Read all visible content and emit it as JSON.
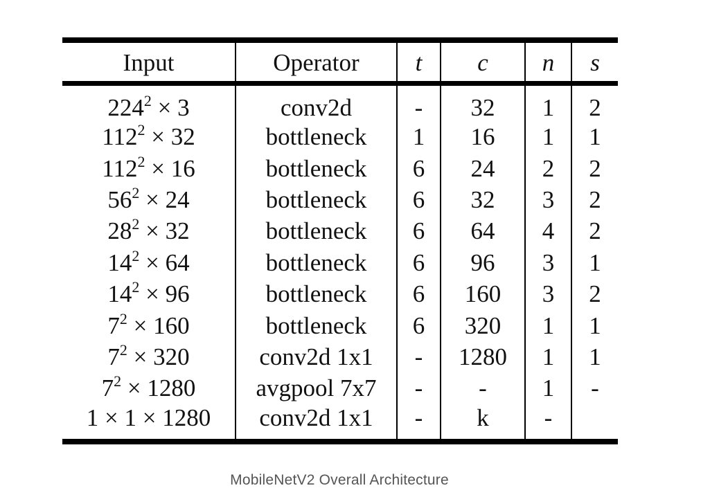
{
  "table": {
    "headers": {
      "input": "Input",
      "operator": "Operator",
      "t": "t",
      "c": "c",
      "n": "n",
      "s": "s"
    },
    "rows": [
      {
        "input_base": "224",
        "input_exp": "2",
        "input_rest": " × 3",
        "operator": "conv2d",
        "t": "-",
        "c": "32",
        "n": "1",
        "s": "2"
      },
      {
        "input_base": "112",
        "input_exp": "2",
        "input_rest": " × 32",
        "operator": "bottleneck",
        "t": "1",
        "c": "16",
        "n": "1",
        "s": "1"
      },
      {
        "input_base": "112",
        "input_exp": "2",
        "input_rest": " × 16",
        "operator": "bottleneck",
        "t": "6",
        "c": "24",
        "n": "2",
        "s": "2"
      },
      {
        "input_base": "56",
        "input_exp": "2",
        "input_rest": " × 24",
        "operator": "bottleneck",
        "t": "6",
        "c": "32",
        "n": "3",
        "s": "2"
      },
      {
        "input_base": "28",
        "input_exp": "2",
        "input_rest": " × 32",
        "operator": "bottleneck",
        "t": "6",
        "c": "64",
        "n": "4",
        "s": "2"
      },
      {
        "input_base": "14",
        "input_exp": "2",
        "input_rest": " × 64",
        "operator": "bottleneck",
        "t": "6",
        "c": "96",
        "n": "3",
        "s": "1"
      },
      {
        "input_base": "14",
        "input_exp": "2",
        "input_rest": " × 96",
        "operator": "bottleneck",
        "t": "6",
        "c": "160",
        "n": "3",
        "s": "2"
      },
      {
        "input_base": "7",
        "input_exp": "2",
        "input_rest": " × 160",
        "operator": "bottleneck",
        "t": "6",
        "c": "320",
        "n": "1",
        "s": "1"
      },
      {
        "input_base": "7",
        "input_exp": "2",
        "input_rest": " × 320",
        "operator": "conv2d 1x1",
        "t": "-",
        "c": "1280",
        "n": "1",
        "s": "1"
      },
      {
        "input_base": "7",
        "input_exp": "2",
        "input_rest": " × 1280",
        "operator": "avgpool 7x7",
        "t": "-",
        "c": "-",
        "n": "1",
        "s": "-"
      },
      {
        "input_base": "1 × 1 × 1280",
        "input_exp": "",
        "input_rest": "",
        "operator": "conv2d 1x1",
        "t": "-",
        "c": "k",
        "n": "-",
        "s": ""
      }
    ]
  },
  "caption": "MobileNetV2 Overall Architecture"
}
